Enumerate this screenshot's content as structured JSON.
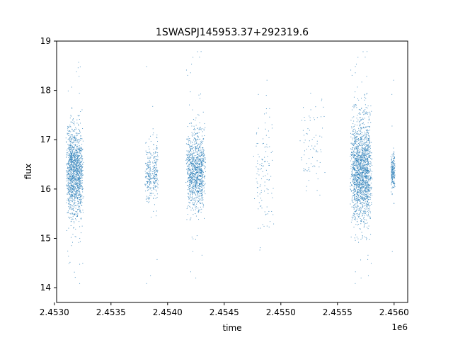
{
  "chart_data": {
    "type": "scatter",
    "title": "1SWASPJ145953.37+292319.6",
    "xlabel": "time",
    "ylabel": "flux",
    "x_offset_label": "1e6",
    "xlim": [
      2.45302,
      2.45612
    ],
    "ylim": [
      13.7,
      19.0
    ],
    "x_ticks": [
      2.453,
      2.4535,
      2.454,
      2.4545,
      2.455,
      2.4555,
      2.456
    ],
    "x_tick_labels": [
      "2.4530",
      "2.4535",
      "2.4540",
      "2.4545",
      "2.4550",
      "2.4555",
      "2.4560"
    ],
    "y_ticks": [
      14,
      15,
      16,
      17,
      18,
      19
    ],
    "y_tick_labels": [
      "14",
      "15",
      "16",
      "17",
      "18",
      "19"
    ],
    "grid": false,
    "point_color": "#1f77b4",
    "clusters": [
      {
        "x_center": 2.45318,
        "x_width": 8e-05,
        "y_center": 16.35,
        "y_spread": 0.45,
        "count": 1400
      },
      {
        "x_center": 2.45383,
        "x_width": 3e-05,
        "y_center": 16.3,
        "y_spread": 0.3,
        "count": 160
      },
      {
        "x_center": 2.45389,
        "x_width": 3e-05,
        "y_center": 16.35,
        "y_spread": 0.3,
        "count": 160
      },
      {
        "x_center": 2.45425,
        "x_width": 9e-05,
        "y_center": 16.35,
        "y_spread": 0.38,
        "count": 1100
      },
      {
        "x_center": 2.45485,
        "x_width": 0.0001,
        "y_center": 16.3,
        "y_spread": 0.6,
        "count": 120
      },
      {
        "x_center": 2.45528,
        "x_width": 0.00012,
        "y_center": 16.9,
        "y_spread": 0.4,
        "count": 80
      },
      {
        "x_center": 2.45571,
        "x_width": 0.0001,
        "y_center": 16.35,
        "y_spread": 0.52,
        "count": 1800
      },
      {
        "x_center": 2.45599,
        "x_width": 2e-05,
        "y_center": 16.35,
        "y_spread": 0.18,
        "count": 200
      }
    ]
  }
}
